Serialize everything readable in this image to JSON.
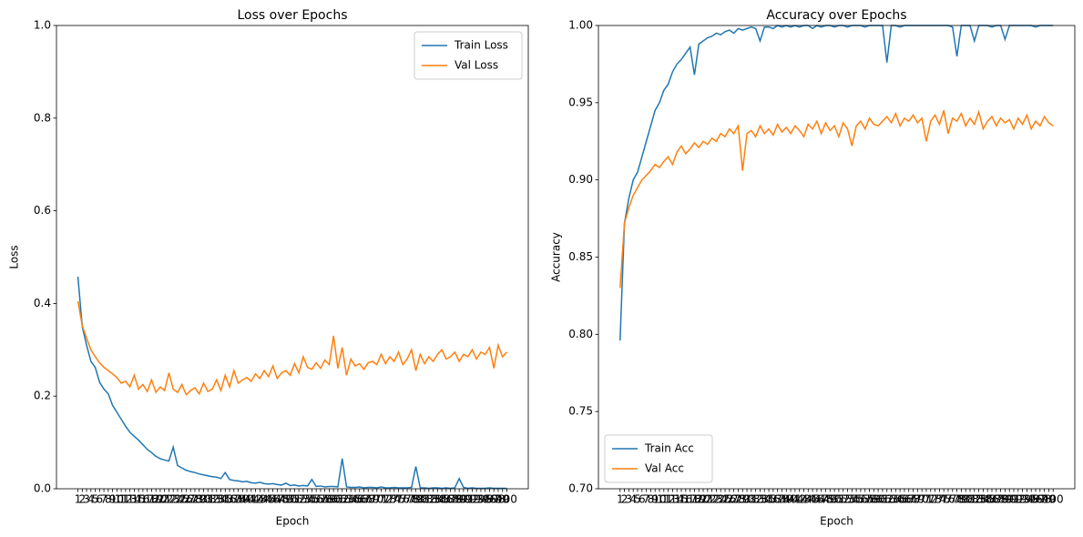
{
  "chart_data": [
    {
      "type": "line",
      "title": "Loss over Epochs",
      "xlabel": "Epoch",
      "ylabel": "Loss",
      "x": [
        1,
        2,
        3,
        4,
        5,
        6,
        7,
        8,
        9,
        10,
        11,
        12,
        13,
        14,
        15,
        16,
        17,
        18,
        19,
        20,
        21,
        22,
        23,
        24,
        25,
        26,
        27,
        28,
        29,
        30,
        31,
        32,
        33,
        34,
        35,
        36,
        37,
        38,
        39,
        40,
        41,
        42,
        43,
        44,
        45,
        46,
        47,
        48,
        49,
        50,
        51,
        52,
        53,
        54,
        55,
        56,
        57,
        58,
        59,
        60,
        61,
        62,
        63,
        64,
        65,
        66,
        67,
        68,
        69,
        70,
        71,
        72,
        73,
        74,
        75,
        76,
        77,
        78,
        79,
        80,
        81,
        82,
        83,
        84,
        85,
        86,
        87,
        88,
        89,
        90,
        91,
        92,
        93,
        94,
        95,
        96,
        97,
        98,
        99,
        100
      ],
      "xlim": [
        -3.95,
        104.95
      ],
      "ylim": [
        0,
        1
      ],
      "yticks": [
        {
          "value": 0,
          "label": "0.0"
        },
        {
          "value": 0.2,
          "label": "0.2"
        },
        {
          "value": 0.4,
          "label": "0.4"
        },
        {
          "value": 0.6,
          "label": "0.6"
        },
        {
          "value": 0.8,
          "label": "0.8"
        },
        {
          "value": 1,
          "label": "1.0"
        }
      ],
      "legend": "upper right",
      "series": [
        {
          "name": "Train Loss",
          "color": "#1f77b4",
          "values": [
            0.458,
            0.35,
            0.31,
            0.275,
            0.262,
            0.23,
            0.215,
            0.205,
            0.18,
            0.165,
            0.15,
            0.135,
            0.122,
            0.113,
            0.105,
            0.095,
            0.085,
            0.078,
            0.07,
            0.065,
            0.062,
            0.06,
            0.09,
            0.05,
            0.045,
            0.04,
            0.037,
            0.035,
            0.032,
            0.03,
            0.028,
            0.026,
            0.025,
            0.022,
            0.035,
            0.02,
            0.018,
            0.017,
            0.015,
            0.016,
            0.013,
            0.012,
            0.014,
            0.011,
            0.01,
            0.011,
            0.009,
            0.008,
            0.012,
            0.007,
            0.008,
            0.006,
            0.007,
            0.006,
            0.02,
            0.005,
            0.006,
            0.004,
            0.005,
            0.005,
            0.004,
            0.065,
            0.004,
            0.003,
            0.003,
            0.004,
            0.002,
            0.003,
            0.003,
            0.002,
            0.004,
            0.002,
            0.002,
            0.003,
            0.002,
            0.002,
            0.002,
            0.003,
            0.048,
            0.002,
            0.002,
            0.001,
            0.002,
            0.002,
            0.001,
            0.002,
            0.001,
            0.002,
            0.022,
            0.003,
            0.001,
            0.002,
            0.001,
            0.001,
            0.001,
            0.002,
            0.001,
            0.001,
            0.001,
            0.001
          ]
        },
        {
          "name": "Val Loss",
          "color": "#ff7f0e",
          "values": [
            0.405,
            0.352,
            0.325,
            0.3,
            0.285,
            0.272,
            0.262,
            0.255,
            0.248,
            0.24,
            0.228,
            0.232,
            0.22,
            0.245,
            0.215,
            0.225,
            0.21,
            0.235,
            0.208,
            0.22,
            0.212,
            0.25,
            0.215,
            0.208,
            0.225,
            0.203,
            0.212,
            0.218,
            0.205,
            0.228,
            0.21,
            0.215,
            0.235,
            0.212,
            0.245,
            0.22,
            0.255,
            0.228,
            0.235,
            0.24,
            0.232,
            0.248,
            0.238,
            0.255,
            0.242,
            0.265,
            0.238,
            0.25,
            0.255,
            0.245,
            0.27,
            0.25,
            0.285,
            0.262,
            0.258,
            0.272,
            0.26,
            0.278,
            0.268,
            0.33,
            0.26,
            0.305,
            0.245,
            0.28,
            0.265,
            0.27,
            0.258,
            0.272,
            0.275,
            0.268,
            0.29,
            0.27,
            0.285,
            0.275,
            0.295,
            0.268,
            0.28,
            0.3,
            0.255,
            0.29,
            0.27,
            0.285,
            0.275,
            0.29,
            0.3,
            0.28,
            0.285,
            0.295,
            0.275,
            0.29,
            0.285,
            0.3,
            0.28,
            0.295,
            0.29,
            0.305,
            0.26,
            0.31,
            0.285,
            0.295
          ]
        }
      ]
    },
    {
      "type": "line",
      "title": "Accuracy over Epochs",
      "xlabel": "Epoch",
      "ylabel": "Accuracy",
      "x": [
        1,
        2,
        3,
        4,
        5,
        6,
        7,
        8,
        9,
        10,
        11,
        12,
        13,
        14,
        15,
        16,
        17,
        18,
        19,
        20,
        21,
        22,
        23,
        24,
        25,
        26,
        27,
        28,
        29,
        30,
        31,
        32,
        33,
        34,
        35,
        36,
        37,
        38,
        39,
        40,
        41,
        42,
        43,
        44,
        45,
        46,
        47,
        48,
        49,
        50,
        51,
        52,
        53,
        54,
        55,
        56,
        57,
        58,
        59,
        60,
        61,
        62,
        63,
        64,
        65,
        66,
        67,
        68,
        69,
        70,
        71,
        72,
        73,
        74,
        75,
        76,
        77,
        78,
        79,
        80,
        81,
        82,
        83,
        84,
        85,
        86,
        87,
        88,
        89,
        90,
        91,
        92,
        93,
        94,
        95,
        96,
        97,
        98,
        99,
        100
      ],
      "xlim": [
        -3.95,
        104.95
      ],
      "ylim": [
        0.7,
        1
      ],
      "yticks": [
        {
          "value": 0.7,
          "label": "0.70"
        },
        {
          "value": 0.75,
          "label": "0.75"
        },
        {
          "value": 0.8,
          "label": "0.80"
        },
        {
          "value": 0.85,
          "label": "0.85"
        },
        {
          "value": 0.9,
          "label": "0.90"
        },
        {
          "value": 0.95,
          "label": "0.95"
        },
        {
          "value": 1,
          "label": "1.00"
        }
      ],
      "legend": "lower left",
      "series": [
        {
          "name": "Train Acc",
          "color": "#1f77b4",
          "values": [
            0.796,
            0.872,
            0.888,
            0.9,
            0.905,
            0.915,
            0.925,
            0.935,
            0.945,
            0.95,
            0.958,
            0.962,
            0.97,
            0.975,
            0.978,
            0.982,
            0.986,
            0.968,
            0.988,
            0.99,
            0.992,
            0.993,
            0.995,
            0.994,
            0.996,
            0.997,
            0.995,
            0.998,
            0.997,
            0.998,
            0.999,
            0.998,
            0.99,
            0.999,
            0.999,
            0.998,
            1.0,
            0.999,
            1.0,
            0.999,
            1.0,
            0.999,
            1.0,
            1.0,
            0.998,
            1.0,
            0.999,
            1.0,
            1.0,
            0.999,
            1.0,
            1.0,
            0.999,
            1.0,
            1.0,
            1.0,
            0.999,
            1.0,
            1.0,
            1.0,
            1.0,
            0.976,
            1.0,
            1.0,
            0.999,
            1.0,
            1.0,
            1.0,
            1.0,
            1.0,
            1.0,
            1.0,
            1.0,
            1.0,
            1.0,
            1.0,
            0.999,
            0.98,
            1.0,
            1.0,
            1.0,
            0.99,
            1.0,
            1.0,
            1.0,
            0.999,
            1.0,
            1.0,
            0.991,
            1.0,
            1.0,
            1.0,
            1.0,
            1.0,
            1.0,
            0.999,
            1.0,
            1.0,
            1.0,
            1.0
          ]
        },
        {
          "name": "Val Acc",
          "color": "#ff7f0e",
          "values": [
            0.83,
            0.872,
            0.882,
            0.89,
            0.895,
            0.9,
            0.903,
            0.906,
            0.91,
            0.908,
            0.912,
            0.915,
            0.91,
            0.918,
            0.922,
            0.917,
            0.92,
            0.924,
            0.921,
            0.925,
            0.923,
            0.927,
            0.925,
            0.93,
            0.928,
            0.933,
            0.93,
            0.935,
            0.906,
            0.93,
            0.932,
            0.928,
            0.935,
            0.93,
            0.933,
            0.929,
            0.936,
            0.931,
            0.934,
            0.93,
            0.935,
            0.932,
            0.928,
            0.936,
            0.933,
            0.938,
            0.93,
            0.937,
            0.932,
            0.935,
            0.928,
            0.937,
            0.933,
            0.922,
            0.935,
            0.938,
            0.933,
            0.94,
            0.936,
            0.935,
            0.938,
            0.941,
            0.937,
            0.943,
            0.935,
            0.94,
            0.938,
            0.942,
            0.937,
            0.94,
            0.925,
            0.938,
            0.942,
            0.936,
            0.945,
            0.93,
            0.94,
            0.938,
            0.943,
            0.935,
            0.94,
            0.936,
            0.944,
            0.933,
            0.938,
            0.941,
            0.935,
            0.94,
            0.937,
            0.939,
            0.933,
            0.94,
            0.936,
            0.942,
            0.933,
            0.938,
            0.935,
            0.941,
            0.937,
            0.935
          ]
        }
      ]
    }
  ]
}
